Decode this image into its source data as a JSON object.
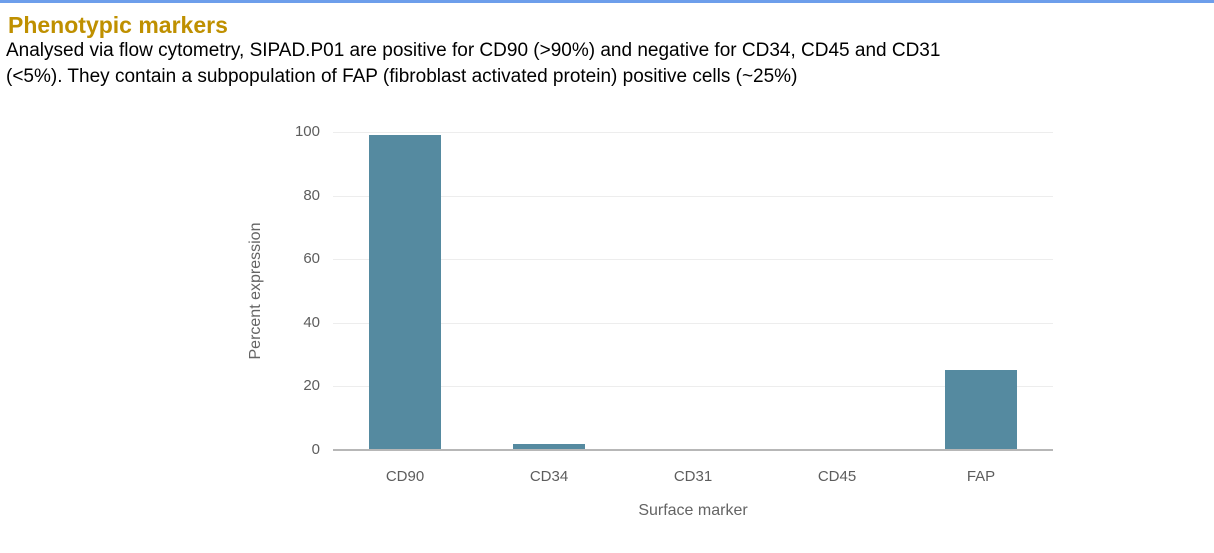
{
  "page": {
    "top_line_color": "#6d9eeb",
    "heading": "Phenotypic markers",
    "heading_color": "#bf9000",
    "paragraph_lines": [
      "Analysed via flow cytometry, SIPAD.P01 are positive for CD90 (>90%) and negative for CD34, CD45 and CD31",
      "(<5%). They contain a subpopulation of FAP (fibroblast activated protein) positive cells (~25%)"
    ]
  },
  "chart_data": {
    "type": "bar",
    "categories": [
      "CD90",
      "CD34",
      "CD31",
      "CD45",
      "FAP"
    ],
    "values": [
      99,
      2,
      0,
      0,
      25
    ],
    "title": "",
    "xlabel": "Surface marker",
    "ylabel": "Percent expression",
    "ylim": [
      0,
      100
    ],
    "yticks": [
      0,
      20,
      40,
      60,
      80,
      100
    ],
    "grid": true,
    "legend_position": "none",
    "bar_color": "#558aa0",
    "grid_color": "#ededed",
    "axis_line_color": "#b7b7b7",
    "tick_label_color": "#5d5d5d",
    "axis_title_color": "#646464"
  }
}
